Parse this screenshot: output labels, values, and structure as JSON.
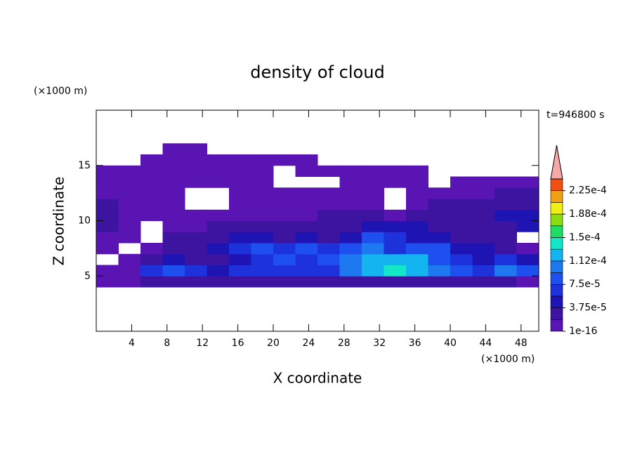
{
  "chart_data": {
    "type": "contour",
    "title": "density of cloud",
    "x_label": "X coordinate",
    "y_label": "Z coordinate",
    "x_unit": "(×1000 m)",
    "y_unit": "(×1000 m)",
    "annotation": "t=946800 s",
    "xlim": [
      0,
      50
    ],
    "ylim": [
      0,
      20
    ],
    "xticks": [
      4,
      8,
      12,
      16,
      20,
      24,
      28,
      32,
      36,
      40,
      44,
      48
    ],
    "yticks": [
      5,
      10,
      15
    ],
    "x": [
      1.25,
      3.75,
      6.25,
      8.75,
      11.25,
      13.75,
      16.25,
      18.75,
      21.25,
      23.75,
      26.25,
      28.75,
      31.25,
      33.75,
      36.25,
      38.75,
      41.25,
      43.75,
      46.25,
      48.75
    ],
    "z": [
      4.5,
      5.5,
      6.5,
      7.5,
      8.5,
      9.5,
      10.5,
      11.5,
      12.5,
      13.5,
      14.5,
      15.5,
      16.5
    ],
    "values": [
      [
        5e-06,
        5e-06,
        2.5e-05,
        2.5e-05,
        2.5e-05,
        2.5e-05,
        2.5e-05,
        2.5e-05,
        2.5e-05,
        2.5e-05,
        2.5e-05,
        2.5e-05,
        2.5e-05,
        2.5e-05,
        2.5e-05,
        2.5e-05,
        2.5e-05,
        2.5e-05,
        2.5e-05,
        5e-06
      ],
      [
        5e-06,
        5e-06,
        6e-05,
        8e-05,
        6e-05,
        4e-05,
        6e-05,
        6e-05,
        6e-05,
        6e-05,
        6e-05,
        0.0001,
        0.00012,
        0.000135,
        0.00012,
        0.0001,
        8e-05,
        6e-05,
        0.0001,
        8e-05
      ],
      [
        null,
        5e-06,
        2.5e-05,
        4e-05,
        2.5e-05,
        2.5e-05,
        4e-05,
        6e-05,
        8e-05,
        6e-05,
        8e-05,
        0.0001,
        0.00012,
        0.00012,
        0.00012,
        8e-05,
        6e-05,
        4e-05,
        6e-05,
        4e-05
      ],
      [
        5e-06,
        null,
        5e-06,
        2.5e-05,
        2.5e-05,
        4e-05,
        6e-05,
        8e-05,
        6e-05,
        8e-05,
        6e-05,
        8e-05,
        0.0001,
        6e-05,
        8e-05,
        8e-05,
        4e-05,
        4e-05,
        2.5e-05,
        5e-06
      ],
      [
        5e-06,
        5e-06,
        null,
        2.5e-05,
        2.5e-05,
        2.5e-05,
        4e-05,
        4e-05,
        2.5e-05,
        4e-05,
        2.5e-05,
        4e-05,
        8e-05,
        6e-05,
        4e-05,
        4e-05,
        2.5e-05,
        2.5e-05,
        2.5e-05,
        null
      ],
      [
        2.5e-05,
        5e-06,
        null,
        5e-06,
        5e-06,
        2.5e-05,
        2.5e-05,
        2.5e-05,
        2.5e-05,
        2.5e-05,
        2.5e-05,
        2.5e-05,
        4e-05,
        4e-05,
        4e-05,
        2.5e-05,
        2.5e-05,
        2.5e-05,
        2.5e-05,
        4e-05
      ],
      [
        2.5e-05,
        5e-06,
        5e-06,
        5e-06,
        5e-06,
        5e-06,
        5e-06,
        5e-06,
        5e-06,
        5e-06,
        2.5e-05,
        2.5e-05,
        2.5e-05,
        5e-06,
        2.5e-05,
        2.5e-05,
        2.5e-05,
        2.5e-05,
        4e-05,
        4e-05
      ],
      [
        2.5e-05,
        5e-06,
        5e-06,
        5e-06,
        null,
        null,
        5e-06,
        5e-06,
        5e-06,
        5e-06,
        5e-06,
        5e-06,
        5e-06,
        null,
        5e-06,
        2.5e-05,
        2.5e-05,
        2.5e-05,
        2.5e-05,
        2.5e-05
      ],
      [
        5e-06,
        5e-06,
        5e-06,
        5e-06,
        null,
        null,
        5e-06,
        5e-06,
        5e-06,
        5e-06,
        5e-06,
        5e-06,
        5e-06,
        null,
        5e-06,
        5e-06,
        5e-06,
        5e-06,
        2.5e-05,
        2.5e-05
      ],
      [
        5e-06,
        5e-06,
        5e-06,
        5e-06,
        5e-06,
        5e-06,
        5e-06,
        5e-06,
        null,
        null,
        null,
        5e-06,
        5e-06,
        5e-06,
        5e-06,
        null,
        5e-06,
        5e-06,
        5e-06,
        5e-06
      ],
      [
        5e-06,
        5e-06,
        5e-06,
        5e-06,
        5e-06,
        5e-06,
        5e-06,
        5e-06,
        null,
        5e-06,
        5e-06,
        5e-06,
        5e-06,
        5e-06,
        5e-06,
        null,
        null,
        null,
        null,
        null
      ],
      [
        null,
        null,
        5e-06,
        5e-06,
        5e-06,
        5e-06,
        5e-06,
        5e-06,
        5e-06,
        5e-06,
        null,
        null,
        null,
        null,
        null,
        null,
        null,
        null,
        null,
        null
      ],
      [
        null,
        null,
        null,
        5e-06,
        5e-06,
        null,
        null,
        null,
        null,
        null,
        null,
        null,
        null,
        null,
        null,
        null,
        null,
        null,
        null,
        null
      ]
    ],
    "colorbar": {
      "levels": [
        1e-16,
        1.875e-05,
        3.75e-05,
        5.625e-05,
        7.5e-05,
        9.375e-05,
        0.0001125,
        0.00013125,
        0.00015,
        0.00016875,
        0.0001875,
        0.00020625,
        0.000225,
        0.00024375
      ],
      "colors": [
        "#5a14b4",
        "#3c14a0",
        "#1e14b4",
        "#1e32dc",
        "#1e50f0",
        "#1e78f0",
        "#14b4f0",
        "#14e6c8",
        "#1edc64",
        "#8cdc14",
        "#f0f014",
        "#f0a014",
        "#f05014"
      ],
      "over_color": "#f4a8a8",
      "ticks": [
        {
          "value": 1e-16,
          "label": "1e-16"
        },
        {
          "value": 3.75e-05,
          "label": "3.75e-5"
        },
        {
          "value": 7.5e-05,
          "label": "7.5e-5"
        },
        {
          "value": 0.0001125,
          "label": "1.12e-4"
        },
        {
          "value": 0.00015,
          "label": "1.5e-4"
        },
        {
          "value": 0.0001875,
          "label": "1.88e-4"
        },
        {
          "value": 0.000225,
          "label": "2.25e-4"
        }
      ]
    }
  }
}
